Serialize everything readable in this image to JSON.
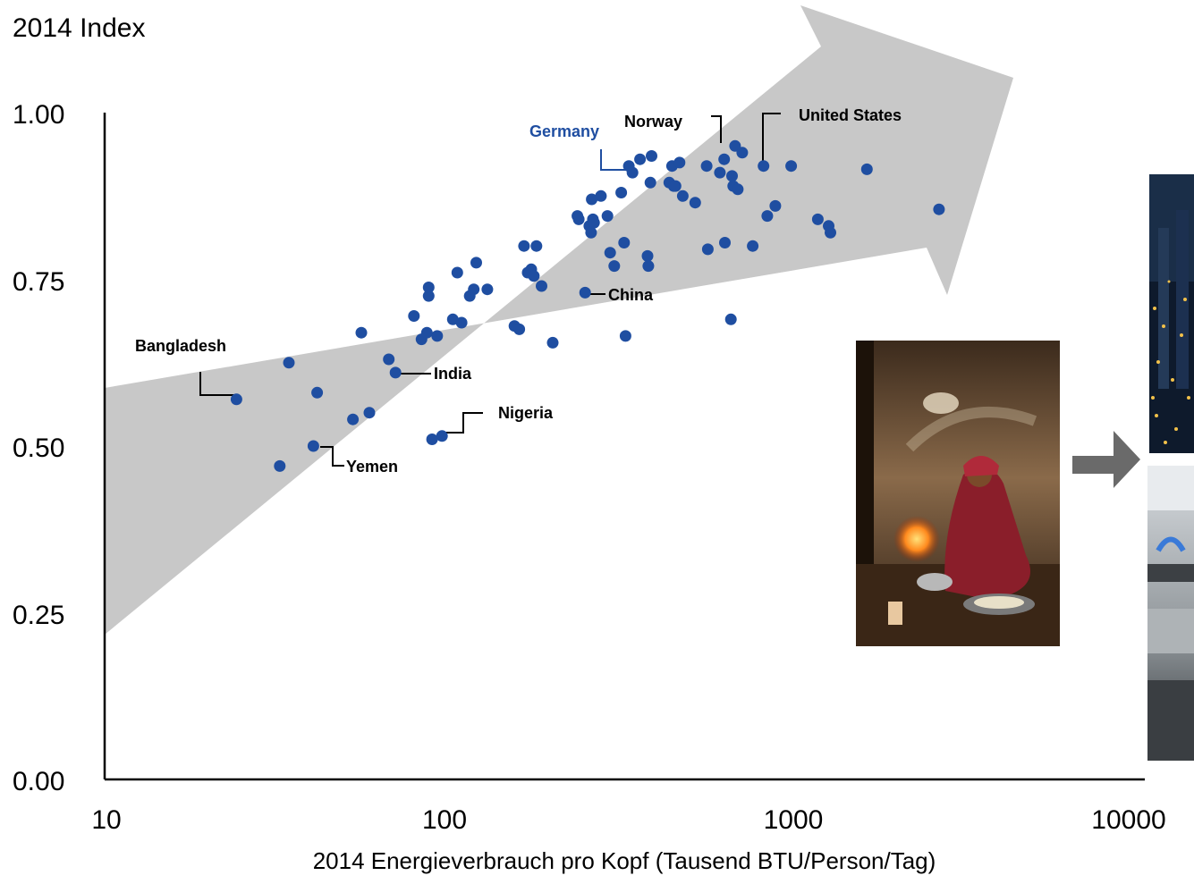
{
  "chart_data": {
    "type": "scatter",
    "title": "",
    "ylabel": "2014 Index",
    "xlabel": "2014 Energieverbrauch pro Kopf (Tausend BTU/Person/Tag)",
    "x_scale": "log",
    "xlim": [
      10,
      10000
    ],
    "ylim": [
      0,
      1
    ],
    "x_ticks": [
      "10",
      "100",
      "1000",
      "10000"
    ],
    "y_ticks": [
      "0.00",
      "0.25",
      "0.50",
      "0.75",
      "1.00"
    ],
    "grid": false,
    "point_color": "#1f4ea1",
    "highlight_color": "#1f4ea1",
    "arrow_color": "#c8c8c8",
    "points": [
      {
        "x": 24,
        "y": 0.57
      },
      {
        "x": 32,
        "y": 0.47
      },
      {
        "x": 34,
        "y": 0.625
      },
      {
        "x": 40,
        "y": 0.5
      },
      {
        "x": 41,
        "y": 0.58
      },
      {
        "x": 52,
        "y": 0.54
      },
      {
        "x": 55,
        "y": 0.67
      },
      {
        "x": 58,
        "y": 0.55
      },
      {
        "x": 66,
        "y": 0.63
      },
      {
        "x": 69,
        "y": 0.61
      },
      {
        "x": 78,
        "y": 0.695
      },
      {
        "x": 82,
        "y": 0.66
      },
      {
        "x": 85,
        "y": 0.67
      },
      {
        "x": 86,
        "y": 0.725
      },
      {
        "x": 86,
        "y": 0.738
      },
      {
        "x": 88,
        "y": 0.51
      },
      {
        "x": 91,
        "y": 0.665
      },
      {
        "x": 94,
        "y": 0.515
      },
      {
        "x": 101,
        "y": 0.69
      },
      {
        "x": 104,
        "y": 0.76
      },
      {
        "x": 107,
        "y": 0.685
      },
      {
        "x": 113,
        "y": 0.725
      },
      {
        "x": 116,
        "y": 0.735
      },
      {
        "x": 118,
        "y": 0.775
      },
      {
        "x": 127,
        "y": 0.735
      },
      {
        "x": 152,
        "y": 0.68
      },
      {
        "x": 157,
        "y": 0.675
      },
      {
        "x": 162,
        "y": 0.8
      },
      {
        "x": 166,
        "y": 0.76
      },
      {
        "x": 170,
        "y": 0.765
      },
      {
        "x": 173,
        "y": 0.755
      },
      {
        "x": 176,
        "y": 0.8
      },
      {
        "x": 182,
        "y": 0.74
      },
      {
        "x": 196,
        "y": 0.655
      },
      {
        "x": 231,
        "y": 0.845
      },
      {
        "x": 233,
        "y": 0.84
      },
      {
        "x": 243,
        "y": 0.73
      },
      {
        "x": 250,
        "y": 0.83
      },
      {
        "x": 253,
        "y": 0.82
      },
      {
        "x": 254,
        "y": 0.87
      },
      {
        "x": 256,
        "y": 0.84
      },
      {
        "x": 258,
        "y": 0.835
      },
      {
        "x": 270,
        "y": 0.875
      },
      {
        "x": 282,
        "y": 0.845
      },
      {
        "x": 287,
        "y": 0.79
      },
      {
        "x": 295,
        "y": 0.77
      },
      {
        "x": 309,
        "y": 0.88
      },
      {
        "x": 315,
        "y": 0.805
      },
      {
        "x": 318,
        "y": 0.665
      },
      {
        "x": 325,
        "y": 0.92
      },
      {
        "x": 333,
        "y": 0.91
      },
      {
        "x": 350,
        "y": 0.93
      },
      {
        "x": 368,
        "y": 0.785
      },
      {
        "x": 370,
        "y": 0.77
      },
      {
        "x": 375,
        "y": 0.895
      },
      {
        "x": 378,
        "y": 0.935
      },
      {
        "x": 425,
        "y": 0.895
      },
      {
        "x": 433,
        "y": 0.92
      },
      {
        "x": 438,
        "y": 0.89
      },
      {
        "x": 443,
        "y": 0.89
      },
      {
        "x": 455,
        "y": 0.925
      },
      {
        "x": 465,
        "y": 0.875
      },
      {
        "x": 505,
        "y": 0.865
      },
      {
        "x": 545,
        "y": 0.92
      },
      {
        "x": 549,
        "y": 0.795
      },
      {
        "x": 595,
        "y": 0.91
      },
      {
        "x": 612,
        "y": 0.93
      },
      {
        "x": 615,
        "y": 0.805
      },
      {
        "x": 640,
        "y": 0.69
      },
      {
        "x": 645,
        "y": 0.905
      },
      {
        "x": 650,
        "y": 0.89
      },
      {
        "x": 658,
        "y": 0.95
      },
      {
        "x": 670,
        "y": 0.885
      },
      {
        "x": 690,
        "y": 0.94
      },
      {
        "x": 740,
        "y": 0.8
      },
      {
        "x": 795,
        "y": 0.92
      },
      {
        "x": 815,
        "y": 0.845
      },
      {
        "x": 860,
        "y": 0.86
      },
      {
        "x": 955,
        "y": 0.92
      },
      {
        "x": 1140,
        "y": 0.84
      },
      {
        "x": 1225,
        "y": 0.83
      },
      {
        "x": 1240,
        "y": 0.82
      },
      {
        "x": 1580,
        "y": 0.915
      },
      {
        "x": 2550,
        "y": 0.855
      }
    ],
    "annotations": [
      {
        "label": "Bangladesh",
        "x": 24,
        "y": 0.57
      },
      {
        "label": "Yemen",
        "x": 40,
        "y": 0.5
      },
      {
        "label": "India",
        "x": 69,
        "y": 0.61
      },
      {
        "label": "Nigeria",
        "x": 94,
        "y": 0.515
      },
      {
        "label": "China",
        "x": 243,
        "y": 0.73
      },
      {
        "label": "Germany",
        "x": 325,
        "y": 0.92,
        "highlight": true
      },
      {
        "label": "Norway",
        "x": 612,
        "y": 0.93
      },
      {
        "label": "United States",
        "x": 795,
        "y": 0.92
      }
    ]
  },
  "images": [
    {
      "name": "photo-traditional-stove",
      "subject": "woman cooking over an open wood fire indoors"
    },
    {
      "name": "photo-city-lights",
      "subject": "city skyline at night"
    },
    {
      "name": "photo-gas-stove",
      "subject": "gas stove burner with blue flame"
    }
  ]
}
